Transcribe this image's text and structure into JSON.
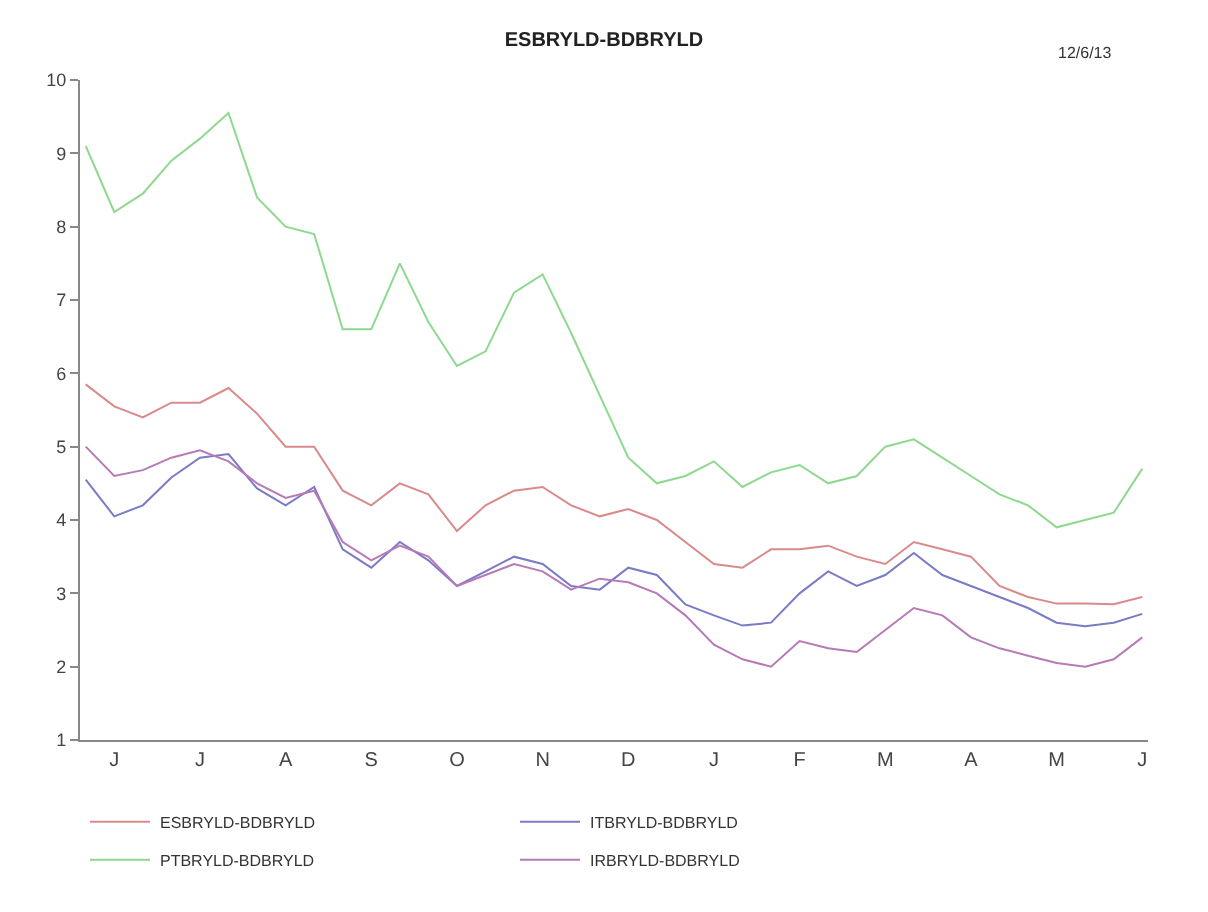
{
  "chart_data": {
    "type": "line",
    "title": "ESBRYLD-BDBRYLD",
    "subtitle": "12/6/13",
    "categories": [
      null,
      "J",
      null,
      null,
      "J",
      null,
      null,
      "A",
      null,
      null,
      "S",
      null,
      null,
      "O",
      null,
      null,
      "N",
      null,
      null,
      "D",
      null,
      null,
      "J",
      null,
      null,
      "F",
      null,
      null,
      "M",
      null,
      null,
      "A",
      null,
      null,
      "M",
      null,
      null,
      "J"
    ],
    "ylim": [
      1,
      10
    ],
    "yticks": [
      1,
      2,
      3,
      4,
      5,
      6,
      7,
      8,
      9,
      10
    ],
    "legend": "bottom",
    "marker": "none",
    "line_style": "solid",
    "series": [
      {
        "name": "ESBRYLD-BDBRYLD",
        "color": "#d98a8a",
        "values": [
          5.85,
          5.55,
          5.4,
          5.6,
          5.6,
          5.8,
          5.45,
          5.0,
          5.0,
          4.4,
          4.2,
          4.5,
          4.35,
          3.85,
          4.2,
          4.4,
          4.45,
          4.2,
          4.05,
          4.15,
          4.0,
          3.7,
          3.4,
          3.35,
          3.6,
          3.6,
          3.65,
          3.5,
          3.4,
          3.7,
          3.6,
          3.5,
          3.1,
          2.95,
          2.86,
          2.86,
          2.85,
          2.95
        ]
      },
      {
        "name": "ITBRYLD-BDBRYLD",
        "color": "#7a7ac8",
        "values": [
          4.55,
          4.05,
          4.2,
          4.58,
          4.85,
          4.9,
          4.43,
          4.2,
          4.45,
          3.6,
          3.35,
          3.7,
          3.45,
          3.1,
          3.3,
          3.5,
          3.4,
          3.1,
          3.05,
          3.35,
          3.25,
          2.85,
          2.7,
          2.56,
          2.6,
          3.0,
          3.3,
          3.1,
          3.25,
          3.55,
          3.25,
          3.1,
          2.95,
          2.8,
          2.6,
          2.55,
          2.6,
          2.72
        ]
      },
      {
        "name": "PTBRYLD-BDBRYLD",
        "color": "#8fd88f",
        "values": [
          9.1,
          8.2,
          8.45,
          8.9,
          9.2,
          9.55,
          8.4,
          8.0,
          7.9,
          6.6,
          6.6,
          7.5,
          6.7,
          6.1,
          6.3,
          7.1,
          7.35,
          6.55,
          5.7,
          4.85,
          4.5,
          4.6,
          4.8,
          4.45,
          4.65,
          4.75,
          4.5,
          4.6,
          5.0,
          5.1,
          4.85,
          4.6,
          4.35,
          4.2,
          3.9,
          4.0,
          4.1,
          4.7
        ]
      },
      {
        "name": "IRBRYLD-BDBRYLD",
        "color": "#b77ab7",
        "values": [
          5.0,
          4.6,
          4.68,
          4.85,
          4.95,
          4.8,
          4.5,
          4.3,
          4.4,
          3.7,
          3.45,
          3.65,
          3.5,
          3.1,
          3.25,
          3.4,
          3.3,
          3.05,
          3.2,
          3.15,
          3.0,
          2.7,
          2.3,
          2.1,
          2.0,
          2.35,
          2.25,
          2.2,
          2.5,
          2.8,
          2.7,
          2.4,
          2.25,
          2.15,
          2.05,
          2.0,
          2.1,
          2.4
        ]
      }
    ]
  }
}
